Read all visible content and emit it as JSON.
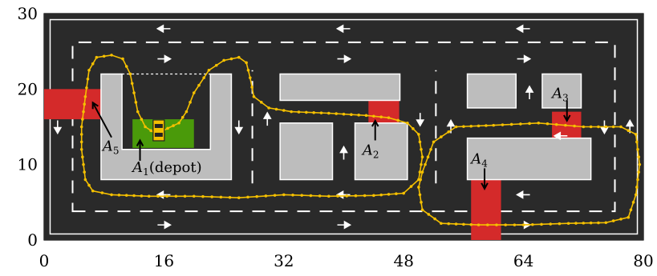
{
  "chart_data": {
    "type": "map",
    "xlim": [
      0,
      80
    ],
    "ylim": [
      0,
      30
    ],
    "x_ticks": [
      "0",
      "16",
      "32",
      "48",
      "64",
      "80"
    ],
    "y_ticks": [
      "0",
      "10",
      "20",
      "30"
    ],
    "colors": {
      "road": "#2a2a2a",
      "building": "#bdbdbd",
      "zone": "#d42a2a",
      "depot": "#4a9a0a",
      "path": "#f5c000",
      "marking": "#ffffff"
    },
    "areas": [
      {
        "id": "A1",
        "label_main": "A",
        "label_sub": "1",
        "label_suffix": "(depot)"
      },
      {
        "id": "A2",
        "label_main": "A",
        "label_sub": "2",
        "label_suffix": ""
      },
      {
        "id": "A3",
        "label_main": "A",
        "label_sub": "3",
        "label_suffix": ""
      },
      {
        "id": "A4",
        "label_main": "A",
        "label_sub": "4",
        "label_suffix": ""
      },
      {
        "id": "A5",
        "label_main": "A",
        "label_sub": "5",
        "label_suffix": ""
      }
    ],
    "trajectory": [
      [
        15,
        14
      ],
      [
        13.5,
        15
      ],
      [
        12.5,
        17
      ],
      [
        12,
        19.5
      ],
      [
        11.5,
        22
      ],
      [
        10.5,
        24
      ],
      [
        9,
        24.5
      ],
      [
        7,
        24.2
      ],
      [
        6,
        22.5
      ],
      [
        5.5,
        19
      ],
      [
        5,
        15
      ],
      [
        5,
        12
      ],
      [
        5.5,
        8
      ],
      [
        6.5,
        6.5
      ],
      [
        9,
        6
      ],
      [
        14,
        5.8
      ],
      [
        20,
        5.8
      ],
      [
        26,
        5.6
      ],
      [
        32,
        6
      ],
      [
        38,
        5.8
      ],
      [
        44,
        5.9
      ],
      [
        48,
        6.2
      ],
      [
        50,
        8
      ],
      [
        50.5,
        11
      ],
      [
        50,
        14
      ],
      [
        48.5,
        15.5
      ],
      [
        46,
        16.2
      ],
      [
        43,
        16.5
      ],
      [
        38,
        16.8
      ],
      [
        33,
        17
      ],
      [
        30,
        17.5
      ],
      [
        28,
        19
      ],
      [
        27.5,
        21.5
      ],
      [
        27,
        23.5
      ],
      [
        26,
        24.2
      ],
      [
        24,
        23.8
      ],
      [
        22,
        22.5
      ],
      [
        20,
        19.5
      ],
      [
        19,
        17
      ],
      [
        18,
        15.5
      ],
      [
        16.5,
        14.8
      ],
      [
        15,
        14
      ]
    ],
    "loop_trajectory": [
      [
        50.5,
        9
      ],
      [
        52,
        13
      ],
      [
        55,
        15
      ],
      [
        60,
        15.2
      ],
      [
        66,
        15.5
      ],
      [
        72,
        15
      ],
      [
        77,
        15
      ],
      [
        79,
        14
      ],
      [
        79.5,
        10
      ],
      [
        79,
        6
      ],
      [
        78,
        3
      ],
      [
        75,
        2.3
      ],
      [
        70,
        2.2
      ],
      [
        64,
        2
      ],
      [
        58,
        2
      ],
      [
        53,
        2.2
      ],
      [
        50.5,
        4
      ],
      [
        50,
        7
      ],
      [
        50.5,
        9
      ]
    ]
  }
}
